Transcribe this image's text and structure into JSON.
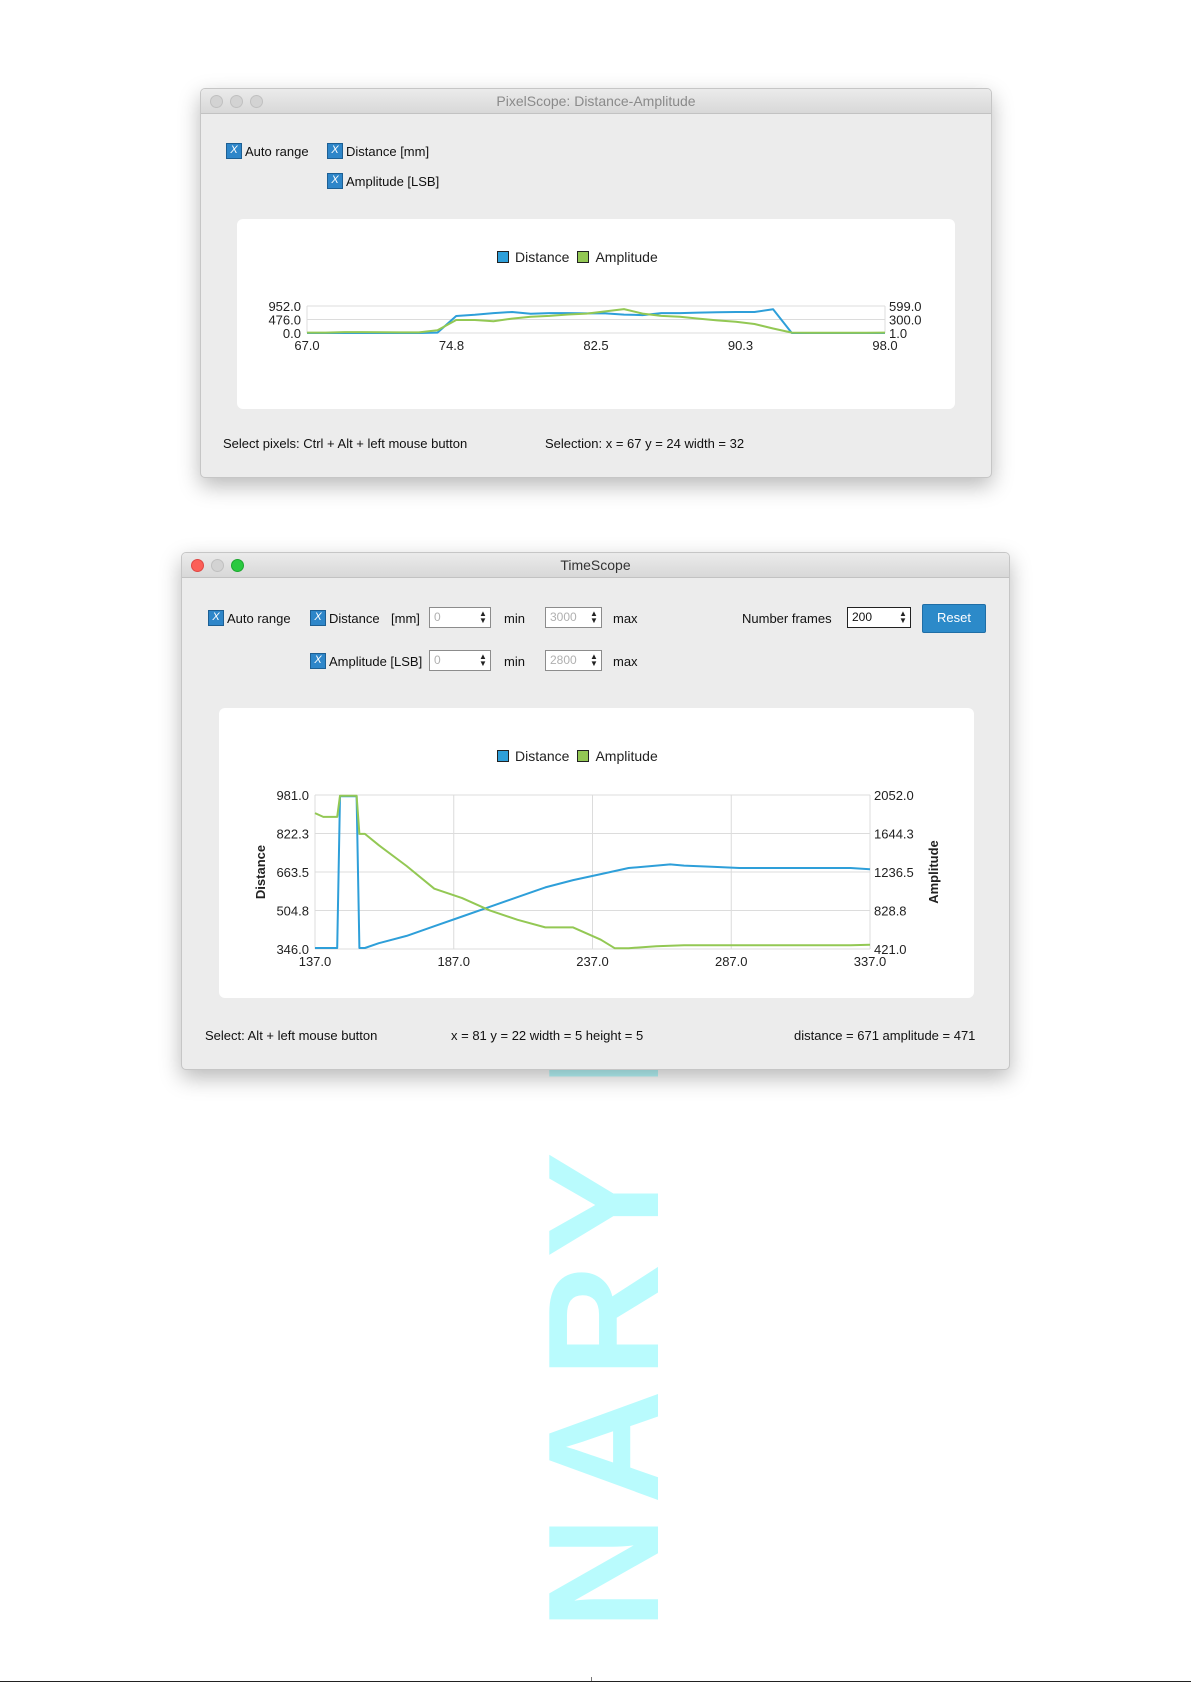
{
  "watermark": "NARY P",
  "pixelscope": {
    "title": "PixelScope: Distance-Amplitude",
    "auto_range": "Auto range",
    "distance_label": "Distance [mm]",
    "amplitude_label": "Amplitude [LSB]",
    "check_mark": "X",
    "status_left": "Select pixels: Ctrl + Alt + left mouse button",
    "status_right": "Selection: x = 67  y = 24  width = 32",
    "legend": [
      "Distance",
      "Amplitude"
    ]
  },
  "timescope": {
    "title": "TimeScope",
    "auto_range": "Auto range",
    "distance_label": "Distance",
    "distance_unit": "[mm]",
    "amplitude_label": "Amplitude [LSB]",
    "check_mark": "X",
    "dist_min": "0",
    "dist_max": "3000",
    "amp_min": "0",
    "amp_max": "2800",
    "min_label": "min",
    "max_label": "max",
    "frames_label": "Number frames",
    "frames_value": "200",
    "reset_label": "Reset",
    "status_left": "Select: Alt + left mouse button",
    "status_mid": "x = 81  y = 22  width = 5  height = 5",
    "status_right": "distance = 671  amplitude = 471",
    "legend": [
      "Distance",
      "Amplitude"
    ]
  },
  "colors": {
    "distance": "#2e9fd9",
    "amplitude": "#93c854",
    "accent": "#2c8ac9"
  },
  "chart_data": [
    {
      "type": "line",
      "x_ticks": [
        "67.0",
        "74.8",
        "82.5",
        "90.3",
        "98.0"
      ],
      "y_left_ticks": [
        "952.0",
        "476.0",
        "0.0"
      ],
      "y_right_ticks": [
        "599.0",
        "300.0",
        "1.0"
      ],
      "xlim": [
        67,
        98
      ],
      "ylim_left": [
        0,
        952
      ],
      "ylim_right": [
        1,
        599
      ],
      "legend": "top-center",
      "series": [
        {
          "name": "Distance",
          "axis": "left",
          "x": [
            67,
            68,
            69,
            70,
            71,
            72,
            73,
            74,
            75,
            76,
            77,
            78,
            79,
            80,
            81,
            82,
            83,
            84,
            85,
            86,
            87,
            88,
            89,
            90,
            91,
            92,
            93,
            94,
            95,
            96,
            97,
            98
          ],
          "y": [
            0,
            0,
            0,
            0,
            0,
            0,
            0,
            15,
            600,
            640,
            700,
            740,
            680,
            700,
            700,
            690,
            690,
            650,
            630,
            700,
            700,
            720,
            730,
            740,
            740,
            840,
            0,
            0,
            0,
            0,
            0,
            0
          ]
        },
        {
          "name": "Amplitude",
          "axis": "right",
          "x": [
            67,
            68,
            69,
            70,
            71,
            72,
            73,
            74,
            75,
            76,
            77,
            78,
            79,
            80,
            81,
            82,
            83,
            84,
            85,
            86,
            87,
            88,
            89,
            90,
            91,
            92,
            93,
            94,
            95,
            96,
            97,
            98
          ],
          "y": [
            10,
            10,
            20,
            20,
            18,
            15,
            15,
            60,
            290,
            290,
            260,
            320,
            360,
            380,
            410,
            430,
            480,
            530,
            430,
            380,
            360,
            320,
            280,
            250,
            200,
            100,
            10,
            8,
            8,
            8,
            8,
            10
          ]
        }
      ]
    },
    {
      "type": "line",
      "x_ticks": [
        "137.0",
        "187.0",
        "237.0",
        "287.0",
        "337.0"
      ],
      "y_left_ticks": [
        "981.0",
        "822.3",
        "663.5",
        "504.8",
        "346.0"
      ],
      "y_right_ticks": [
        "2052.0",
        "1644.3",
        "1236.5",
        "828.8",
        "421.0"
      ],
      "xlabel": "",
      "ylabel_left": "Distance",
      "ylabel_right": "Amplitude",
      "xlim": [
        137,
        337
      ],
      "ylim_left": [
        346,
        981
      ],
      "ylim_right": [
        421,
        2052
      ],
      "grid": true,
      "legend": "top-center",
      "series": [
        {
          "name": "Distance",
          "axis": "left",
          "x": [
            137,
            140,
            143,
            145,
            146,
            150,
            152,
            153,
            155,
            160,
            170,
            180,
            190,
            200,
            210,
            220,
            230,
            240,
            250,
            260,
            265,
            270,
            280,
            290,
            300,
            310,
            320,
            330,
            337
          ],
          "y": [
            350,
            350,
            350,
            350,
            976,
            976,
            976,
            350,
            350,
            370,
            400,
            440,
            480,
            520,
            560,
            600,
            630,
            655,
            680,
            690,
            695,
            690,
            685,
            680,
            680,
            680,
            680,
            680,
            675
          ]
        },
        {
          "name": "Amplitude",
          "axis": "right",
          "x": [
            137,
            140,
            143,
            145,
            146,
            150,
            152,
            153,
            155,
            160,
            170,
            180,
            190,
            200,
            210,
            220,
            230,
            240,
            245,
            250,
            255,
            260,
            270,
            280,
            290,
            300,
            310,
            320,
            330,
            337
          ],
          "y": [
            1860,
            1820,
            1820,
            1820,
            2045,
            2045,
            2045,
            1640,
            1640,
            1520,
            1300,
            1060,
            960,
            830,
            730,
            650,
            650,
            520,
            430,
            430,
            440,
            450,
            460,
            460,
            460,
            460,
            460,
            460,
            460,
            465
          ]
        }
      ]
    }
  ]
}
